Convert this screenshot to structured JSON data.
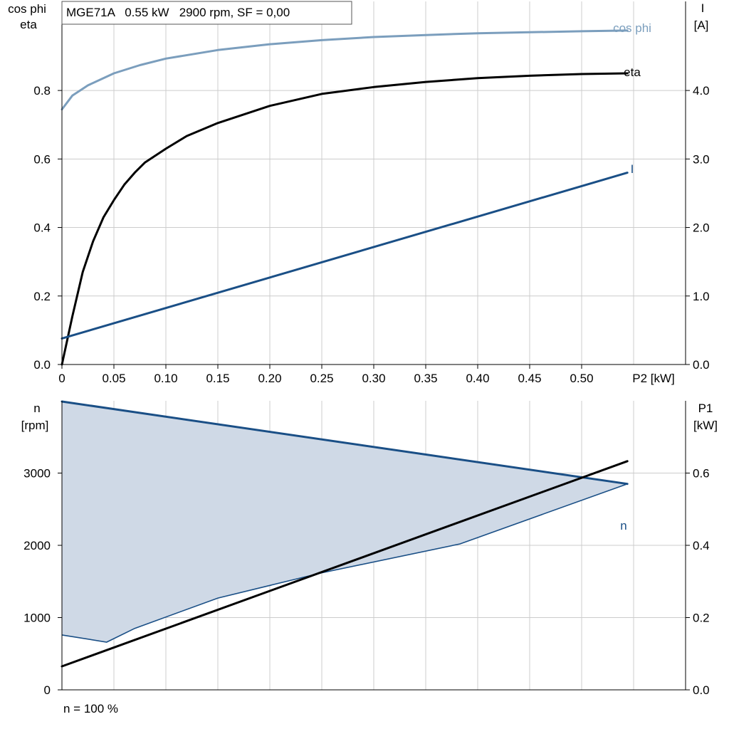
{
  "header": {
    "title": "MGE71A   0.55 kW   2900 rpm, SF = 0,00"
  },
  "footer": {
    "note": "n = 100 %"
  },
  "colors": {
    "cos_phi": "#7b9ebd",
    "eta": "#000000",
    "current": "#1a4f86",
    "speed": "#1a4f86",
    "speed_band_fill": "#cfd9e6",
    "p1": "#000000",
    "grid": "#cccccc"
  },
  "chart_data": [
    {
      "id": "top",
      "type": "line",
      "xlabel": "P2 [kW]",
      "ylabel_left": [
        "cos phi",
        "eta"
      ],
      "ylabel_right": [
        "I",
        "[A]"
      ],
      "xlim": [
        0,
        0.6
      ],
      "ylim_left": [
        0,
        1.06
      ],
      "ylim_right": [
        0,
        5.3
      ],
      "grid": true,
      "x_ticks": [
        0,
        0.05,
        0.1,
        0.15,
        0.2,
        0.25,
        0.3,
        0.35,
        0.4,
        0.45,
        0.5
      ],
      "x_tick_labels": [
        "0",
        "0.05",
        "0.10",
        "0.15",
        "0.20",
        "0.25",
        "0.30",
        "0.35",
        "0.40",
        "0.45",
        "0.50"
      ],
      "left_ticks": [
        0,
        0.2,
        0.4,
        0.6,
        0.8
      ],
      "left_tick_labels": [
        "0.0",
        "0.2",
        "0.4",
        "0.6",
        "0.8"
      ],
      "right_ticks": [
        0,
        1,
        2,
        3,
        4
      ],
      "right_tick_labels": [
        "0.0",
        "1.0",
        "2.0",
        "3.0",
        "4.0"
      ],
      "series": [
        {
          "name": "cos phi",
          "axis": "left",
          "color_key": "cos_phi",
          "x": [
            0,
            0.01,
            0.025,
            0.05,
            0.075,
            0.1,
            0.15,
            0.2,
            0.25,
            0.3,
            0.35,
            0.4,
            0.45,
            0.5,
            0.544
          ],
          "y": [
            0.745,
            0.785,
            0.815,
            0.85,
            0.874,
            0.893,
            0.918,
            0.935,
            0.947,
            0.956,
            0.962,
            0.967,
            0.97,
            0.973,
            0.975
          ]
        },
        {
          "name": "eta",
          "axis": "left",
          "color_key": "eta",
          "x": [
            0,
            0.005,
            0.01,
            0.02,
            0.03,
            0.04,
            0.05,
            0.06,
            0.07,
            0.08,
            0.1,
            0.12,
            0.15,
            0.2,
            0.25,
            0.3,
            0.35,
            0.4,
            0.45,
            0.5,
            0.544
          ],
          "y": [
            0,
            0.07,
            0.14,
            0.27,
            0.36,
            0.43,
            0.48,
            0.525,
            0.56,
            0.59,
            0.63,
            0.667,
            0.705,
            0.755,
            0.79,
            0.81,
            0.825,
            0.836,
            0.843,
            0.848,
            0.85
          ]
        },
        {
          "name": "I",
          "axis": "right",
          "color_key": "current",
          "x": [
            0,
            0.544
          ],
          "y": [
            0.38,
            2.8
          ]
        }
      ]
    },
    {
      "id": "bottom",
      "type": "line",
      "xlabel": "",
      "ylabel_left": [
        "n",
        "[rpm]"
      ],
      "ylabel_right": [
        "P1",
        "[kW]"
      ],
      "xlim": [
        0,
        0.6
      ],
      "ylim_left": [
        0,
        4000
      ],
      "ylim_right": [
        0,
        0.8
      ],
      "grid": true,
      "left_ticks": [
        0,
        1000,
        2000,
        3000
      ],
      "left_tick_labels": [
        "0",
        "1000",
        "2000",
        "3000"
      ],
      "right_ticks": [
        0,
        0.2,
        0.4,
        0.6
      ],
      "right_tick_labels": [
        "0.0",
        "0.2",
        "0.4",
        "0.6"
      ],
      "series": [
        {
          "name": "n",
          "axis": "left",
          "color_key": "speed",
          "role": "upper",
          "x": [
            0,
            0.544
          ],
          "y": [
            3990,
            2850
          ]
        },
        {
          "name": "",
          "axis": "left",
          "color_key": "speed",
          "role": "lower",
          "x": [
            0,
            0.043,
            0.07,
            0.15,
            0.25,
            0.383,
            0.544
          ],
          "y": [
            760,
            660,
            850,
            1270,
            1620,
            2020,
            2850
          ]
        },
        {
          "name": "P1",
          "axis": "right",
          "color_key": "p1",
          "x": [
            0,
            0.544
          ],
          "y": [
            0.065,
            0.633
          ]
        }
      ]
    }
  ]
}
